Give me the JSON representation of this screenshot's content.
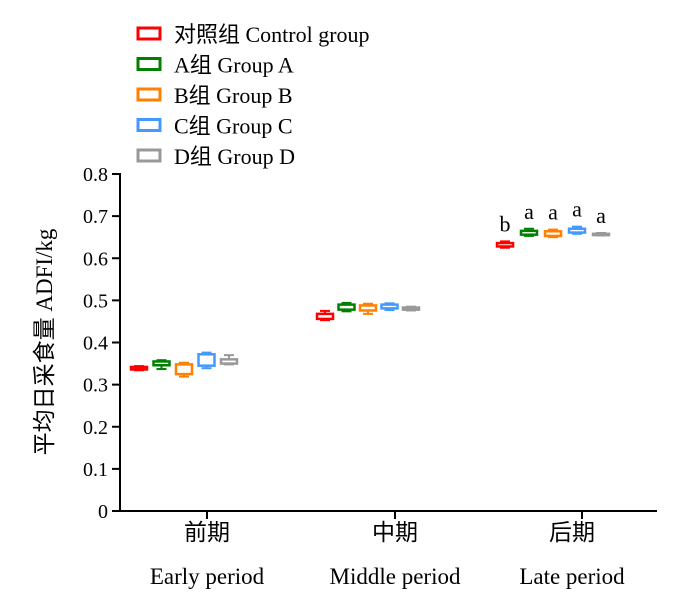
{
  "chart_data": {
    "type": "box",
    "ylabel": "平均日采食量  ADFI/kg",
    "ylim": [
      0,
      0.8
    ],
    "yticks": [
      0,
      0.1,
      0.2,
      0.3,
      0.4,
      0.5,
      0.6,
      0.7,
      0.8
    ],
    "ytick_labels": [
      "0",
      "0.1",
      "0.2",
      "0.3",
      "0.4",
      "0.5",
      "0.6",
      "0.7",
      "0.8"
    ],
    "grid": false,
    "legend_position": "top-left",
    "categories": [
      {
        "label_cn": "前期",
        "label_en": "Early period"
      },
      {
        "label_cn": "中期",
        "label_en": "Middle period"
      },
      {
        "label_cn": "后期",
        "label_en": "Late period"
      }
    ],
    "series": [
      {
        "name": "对照组 Control group",
        "color": "#ff0000",
        "boxes": [
          {
            "min": 0.334,
            "q1": 0.336,
            "q3": 0.342,
            "max": 0.344
          },
          {
            "min": 0.453,
            "q1": 0.456,
            "q3": 0.468,
            "max": 0.475
          },
          {
            "min": 0.625,
            "q1": 0.628,
            "q3": 0.636,
            "max": 0.64
          }
        ],
        "annotations": [
          "",
          "",
          "b"
        ]
      },
      {
        "name": "A组 Group A",
        "color": "#008000",
        "boxes": [
          {
            "min": 0.337,
            "q1": 0.346,
            "q3": 0.355,
            "max": 0.358
          },
          {
            "min": 0.474,
            "q1": 0.478,
            "q3": 0.49,
            "max": 0.494
          },
          {
            "min": 0.653,
            "q1": 0.656,
            "q3": 0.665,
            "max": 0.67
          }
        ],
        "annotations": [
          "",
          "",
          "a"
        ]
      },
      {
        "name": "B组 Group B",
        "color": "#ff7f00",
        "boxes": [
          {
            "min": 0.319,
            "q1": 0.325,
            "q3": 0.348,
            "max": 0.352
          },
          {
            "min": 0.468,
            "q1": 0.476,
            "q3": 0.488,
            "max": 0.492
          },
          {
            "min": 0.65,
            "q1": 0.653,
            "q3": 0.664,
            "max": 0.668
          }
        ],
        "annotations": [
          "",
          "",
          "a"
        ]
      },
      {
        "name": "C组 Group C",
        "color": "#4499ff",
        "boxes": [
          {
            "min": 0.339,
            "q1": 0.345,
            "q3": 0.372,
            "max": 0.376
          },
          {
            "min": 0.477,
            "q1": 0.481,
            "q3": 0.49,
            "max": 0.493
          },
          {
            "min": 0.658,
            "q1": 0.661,
            "q3": 0.67,
            "max": 0.675
          }
        ],
        "annotations": [
          "",
          "",
          "a"
        ]
      },
      {
        "name": "D组 Group D",
        "color": "#999999",
        "boxes": [
          {
            "min": 0.348,
            "q1": 0.35,
            "q3": 0.36,
            "max": 0.37
          },
          {
            "min": 0.476,
            "q1": 0.478,
            "q3": 0.483,
            "max": 0.485
          },
          {
            "min": 0.654,
            "q1": 0.655,
            "q3": 0.658,
            "max": 0.66
          }
        ],
        "annotations": [
          "",
          "",
          "a"
        ]
      }
    ]
  }
}
